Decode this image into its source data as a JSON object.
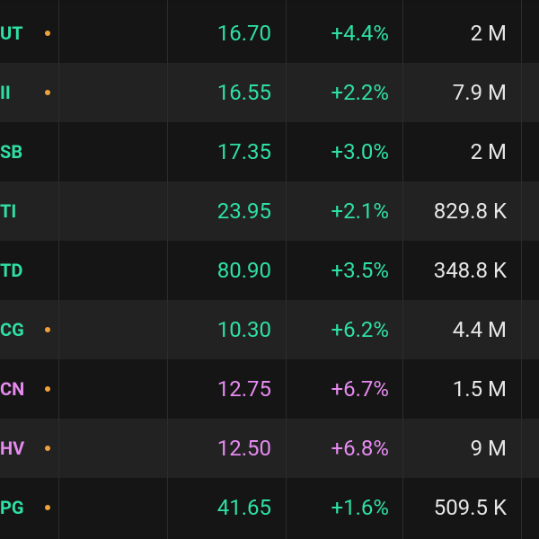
{
  "table": {
    "rows": [
      {
        "symbol": "UT",
        "marked": true,
        "color": "#2fe0a4",
        "price": "16.70",
        "change": "+4.4%",
        "volume": "2 M"
      },
      {
        "symbol": "II",
        "marked": true,
        "color": "#2fe0a4",
        "price": "16.55",
        "change": "+2.2%",
        "volume": "7.9 M"
      },
      {
        "symbol": "SB",
        "marked": false,
        "color": "#2fe0a4",
        "price": "17.35",
        "change": "+3.0%",
        "volume": "2 M"
      },
      {
        "symbol": "TI",
        "marked": false,
        "color": "#2fe0a4",
        "price": "23.95",
        "change": "+2.1%",
        "volume": "829.8 K"
      },
      {
        "symbol": "TD",
        "marked": false,
        "color": "#2fe0a4",
        "price": "80.90",
        "change": "+3.5%",
        "volume": "348.8 K"
      },
      {
        "symbol": "CG",
        "marked": true,
        "color": "#2fe0a4",
        "price": "10.30",
        "change": "+6.2%",
        "volume": "4.4 M"
      },
      {
        "symbol": "CN",
        "marked": true,
        "color": "#e68af0",
        "price": "12.75",
        "change": "+6.7%",
        "volume": "1.5 M"
      },
      {
        "symbol": "HV",
        "marked": true,
        "color": "#e68af0",
        "price": "12.50",
        "change": "+6.8%",
        "volume": "9 M"
      },
      {
        "symbol": "PG",
        "marked": true,
        "color": "#2fe0a4",
        "price": "41.65",
        "change": "+1.6%",
        "volume": "509.5 K"
      }
    ]
  }
}
